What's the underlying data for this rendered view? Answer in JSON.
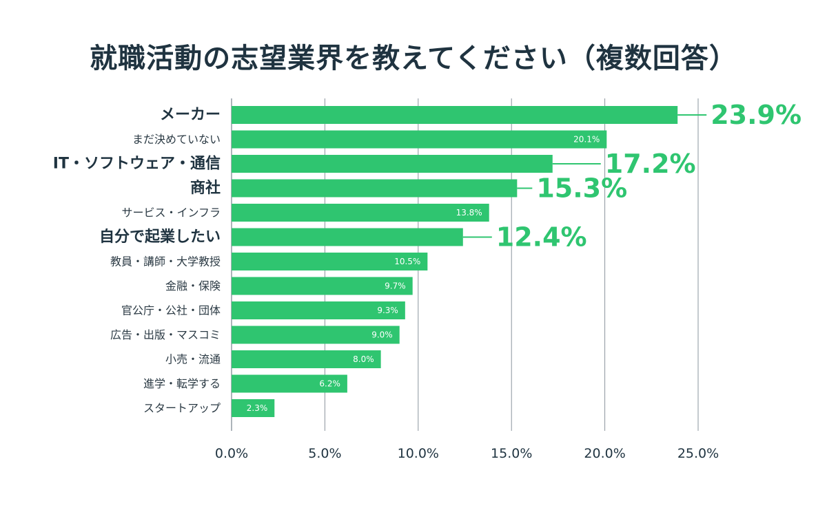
{
  "title": "就職活動の志望業界を教えてください（複数回答）",
  "colors": {
    "bar": "#2fc570",
    "title": "#1f3340",
    "grid": "#8a949c",
    "text": "#2b3a44"
  },
  "chart_data": {
    "type": "bar",
    "orientation": "horizontal",
    "title": "就職活動の志望業界を教えてください（複数回答）",
    "xlabel": "",
    "ylabel": "",
    "xlim": [
      0,
      25
    ],
    "x_ticks": [
      "0.0%",
      "5.0%",
      "10.0%",
      "15.0%",
      "20.0%",
      "25.0%"
    ],
    "grid": true,
    "categories": [
      "メーカー",
      "まだ決めていない",
      "IT・ソフトウェア・通信",
      "商社",
      "サービス・インフラ",
      "自分で起業したい",
      "教員・講師・大学教授",
      "金融・保険",
      "官公庁・公社・団体",
      "広告・出版・マスコミ",
      "小売・流通",
      "進学・転学する",
      "スタートアップ"
    ],
    "values": [
      23.9,
      20.1,
      17.2,
      15.3,
      13.8,
      12.4,
      10.5,
      9.7,
      9.3,
      9.0,
      8.0,
      6.2,
      2.3
    ],
    "value_labels": [
      "23.9%",
      "20.1%",
      "17.2%",
      "15.3%",
      "13.8%",
      "12.4%",
      "10.5%",
      "9.7%",
      "9.3%",
      "9.0%",
      "8.0%",
      "6.2%",
      "2.3%"
    ],
    "highlighted": [
      true,
      false,
      true,
      true,
      false,
      true,
      false,
      false,
      false,
      false,
      false,
      false,
      false
    ]
  }
}
